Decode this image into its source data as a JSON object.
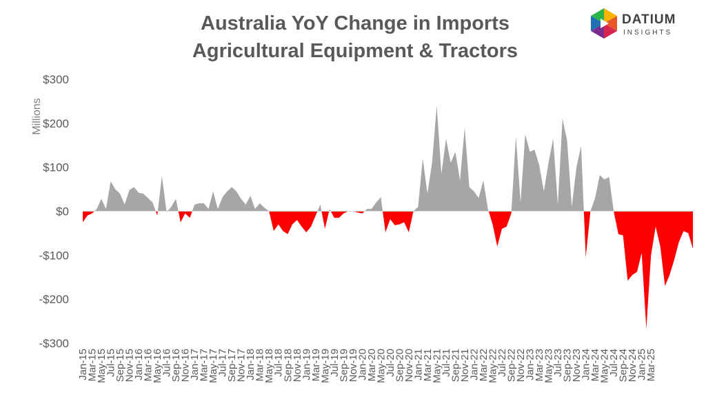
{
  "brand": {
    "name": "DATIUM",
    "sub": "INSIGHTS"
  },
  "chart_data": {
    "type": "area",
    "title": "Australia YoY Change in Imports",
    "subtitle": "Agricultural Equipment & Tractors",
    "ylabel": "Millions",
    "xlabel": "",
    "ylim": [
      -300,
      300
    ],
    "yticks": [
      300,
      200,
      100,
      0,
      -100,
      -200,
      -300
    ],
    "ytick_labels": [
      "$300",
      "$200",
      "$100",
      "$0",
      "-$100",
      "-$200",
      "-$300"
    ],
    "positive_color": "#a6a6a6",
    "negative_color": "#ff0000",
    "grid": false,
    "legend": "none",
    "x_tick_labels": [
      "Jan-15",
      "Mar-15",
      "May-15",
      "Jul-15",
      "Sep-15",
      "Nov-15",
      "Jan-16",
      "Mar-16",
      "May-16",
      "Jul-16",
      "Sep-16",
      "Nov-16",
      "Jan-17",
      "Mar-17",
      "May-17",
      "Jul-17",
      "Sep-17",
      "Nov-17",
      "Jan-18",
      "Mar-18",
      "May-18",
      "Jul-18",
      "Sep-18",
      "Nov-18",
      "Jan-19",
      "Mar-19",
      "May-19",
      "Jul-19",
      "Sep-19",
      "Nov-19",
      "Jan-20",
      "Mar-20",
      "May-20",
      "Jul-20",
      "Sep-20",
      "Nov-20",
      "Jan-21",
      "Mar-21",
      "May-21",
      "Jul-21",
      "Sep-21",
      "Nov-21",
      "Jan-22",
      "Mar-22",
      "May-22",
      "Jul-22",
      "Sep-22",
      "Nov-22",
      "Jan-23",
      "Mar-23",
      "May-23",
      "Jul-23",
      "Sep-23",
      "Nov-23",
      "Jan-24",
      "Mar-24",
      "May-24",
      "Jul-24",
      "Sep-24",
      "Nov-24",
      "Jan-25",
      "Mar-25"
    ],
    "x_start": "Jan-15",
    "frequency": "monthly",
    "values": [
      -25,
      -10,
      -5,
      5,
      28,
      5,
      68,
      50,
      40,
      15,
      48,
      55,
      42,
      40,
      30,
      20,
      -10,
      80,
      -2,
      10,
      28,
      -25,
      -5,
      -15,
      15,
      18,
      18,
      5,
      45,
      5,
      32,
      45,
      55,
      45,
      28,
      15,
      35,
      5,
      18,
      8,
      0,
      -45,
      -30,
      -45,
      -52,
      -30,
      -20,
      -35,
      -48,
      -35,
      -10,
      15,
      -40,
      5,
      -15,
      -15,
      -5,
      0,
      0,
      -3,
      -5,
      5,
      5,
      20,
      32,
      -48,
      -18,
      -32,
      -30,
      -25,
      -48,
      0,
      10,
      120,
      40,
      110,
      240,
      85,
      165,
      110,
      135,
      70,
      190,
      55,
      45,
      30,
      70,
      5,
      -30,
      -80,
      -40,
      -35,
      -5,
      170,
      20,
      175,
      135,
      140,
      105,
      45,
      110,
      165,
      15,
      210,
      160,
      10,
      100,
      148,
      -105,
      0,
      30,
      82,
      72,
      78,
      0,
      -52,
      -55,
      -158,
      -145,
      -138,
      -95,
      -268,
      -100,
      -35,
      -80,
      -170,
      -145,
      -110,
      -70,
      -45,
      -50,
      -85
    ]
  }
}
